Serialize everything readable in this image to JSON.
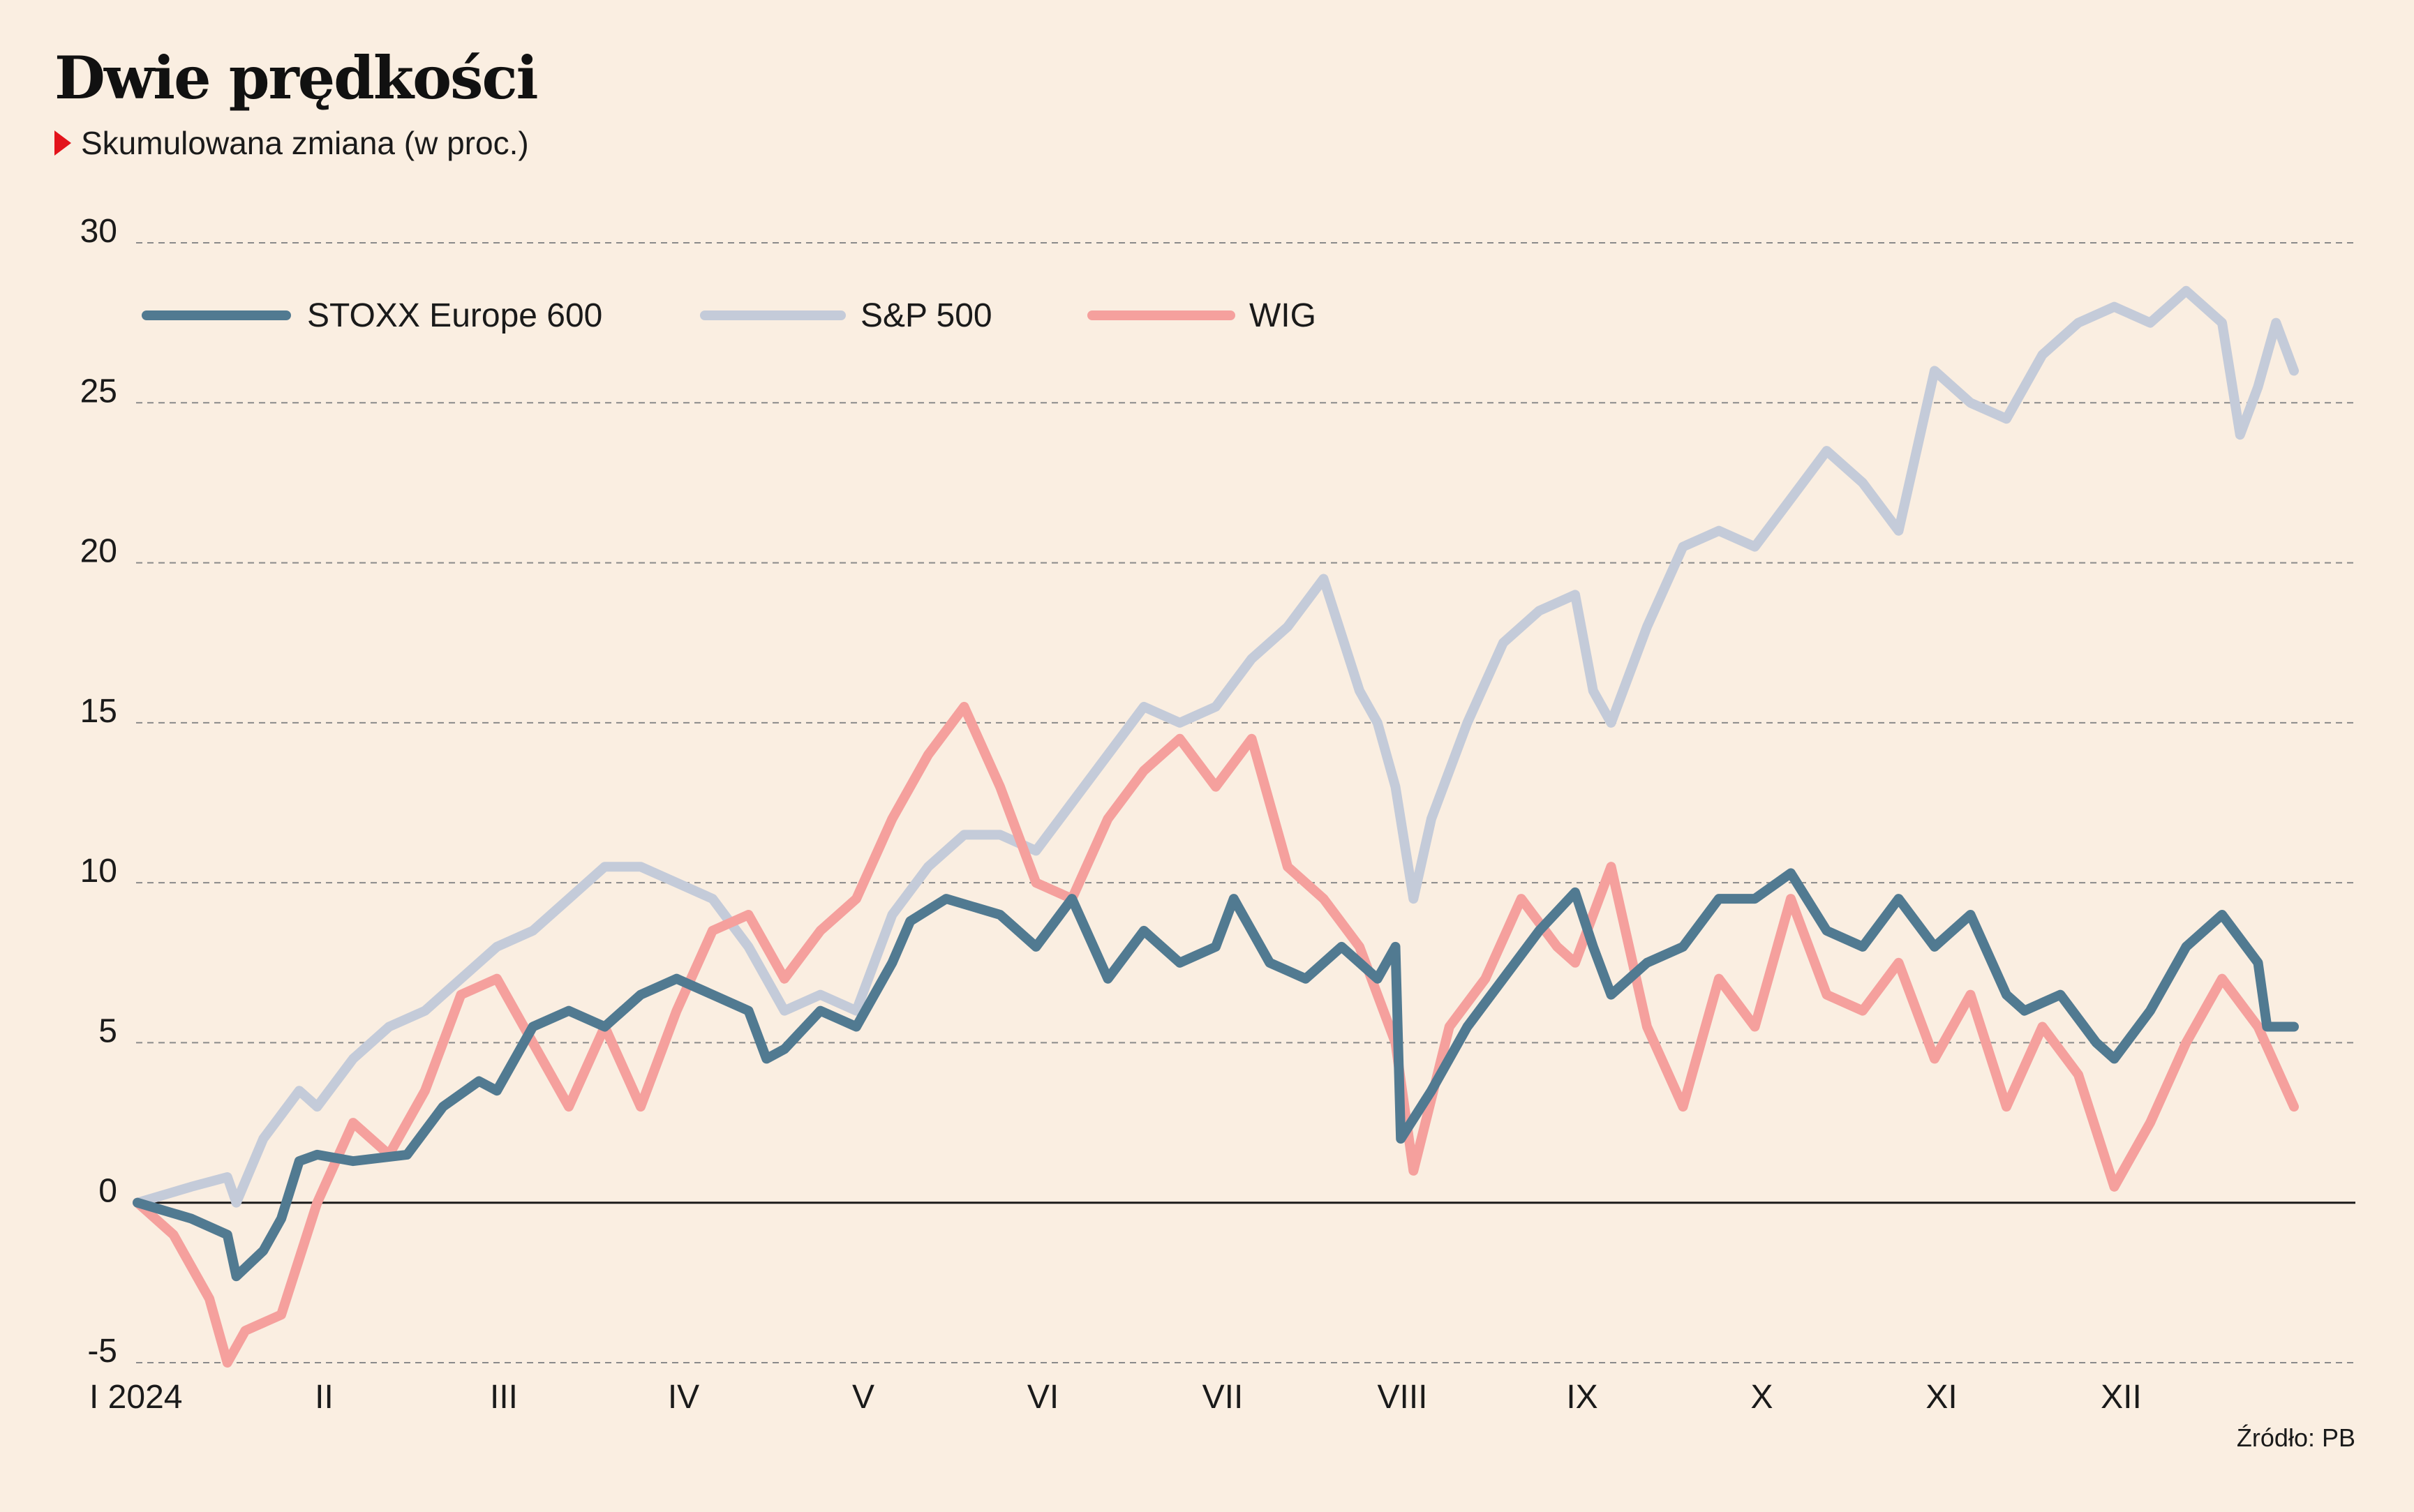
{
  "title": "Dwie prędkości",
  "subtitle": "Skumulowana zmiana (w proc.)",
  "source": "Źródło: PB",
  "colors": {
    "background": "#faeee1",
    "stoxx": "#517a91",
    "sp500": "#c4cbd9",
    "wig": "#f5a09d",
    "grid": "#8a8a8a",
    "zero_line": "#1a1a1a",
    "marker": "#e3131b"
  },
  "chart_data": {
    "type": "line",
    "title": "Dwie prędkości",
    "subtitle": "Skumulowana zmiana (w proc.)",
    "ylim": [
      -5,
      30
    ],
    "yticks": [
      30,
      25,
      20,
      15,
      10,
      5,
      0,
      -5
    ],
    "ytick_labels": [
      "30",
      "25",
      "20",
      "15",
      "10",
      "5",
      "0",
      "-5"
    ],
    "xlim": [
      0,
      12
    ],
    "xtick_positions": [
      0,
      1,
      2,
      3,
      4,
      5,
      6,
      7,
      8,
      9,
      10,
      11
    ],
    "xtick_labels": [
      "I 2024",
      "II",
      "III",
      "IV",
      "V",
      "VI",
      "VII",
      "VIII",
      "IX",
      "X",
      "XI",
      "XII"
    ],
    "grid": true,
    "legend_position": "top-left",
    "series": [
      {
        "name": "STOXX Europe 600",
        "color": "#517a91",
        "x": [
          0,
          0.3,
          0.5,
          0.55,
          0.7,
          0.8,
          0.9,
          1.0,
          1.2,
          1.5,
          1.7,
          1.9,
          2.0,
          2.2,
          2.4,
          2.6,
          2.8,
          3.0,
          3.2,
          3.4,
          3.5,
          3.6,
          3.8,
          4.0,
          4.2,
          4.3,
          4.5,
          4.8,
          5.0,
          5.2,
          5.4,
          5.6,
          5.8,
          6.0,
          6.1,
          6.3,
          6.5,
          6.7,
          6.9,
          7.0,
          7.03,
          7.2,
          7.4,
          7.6,
          7.8,
          8.0,
          8.1,
          8.2,
          8.4,
          8.6,
          8.8,
          9.0,
          9.2,
          9.4,
          9.6,
          9.8,
          10.0,
          10.2,
          10.4,
          10.5,
          10.7,
          10.9,
          11.0,
          11.2,
          11.4,
          11.6,
          11.8,
          11.85,
          12.0
        ],
        "values": [
          0,
          -0.5,
          -1.0,
          -2.3,
          -1.5,
          -0.5,
          1.3,
          1.5,
          1.3,
          1.5,
          3.0,
          3.8,
          3.5,
          5.5,
          6.0,
          5.5,
          6.5,
          7.0,
          6.5,
          6.0,
          4.5,
          4.8,
          6.0,
          5.5,
          7.5,
          8.8,
          9.5,
          9.0,
          8.0,
          9.5,
          7.0,
          8.5,
          7.5,
          8.0,
          9.5,
          7.5,
          7.0,
          8.0,
          7.0,
          8.0,
          2.0,
          3.5,
          5.5,
          7.0,
          8.5,
          9.7,
          8.0,
          6.5,
          7.5,
          8.0,
          9.5,
          9.5,
          10.3,
          8.5,
          8.0,
          9.5,
          8.0,
          9.0,
          6.5,
          6.0,
          6.5,
          5.0,
          4.5,
          6.0,
          8.0,
          9.0,
          7.5,
          5.5,
          5.5
        ]
      },
      {
        "name": "S&P 500",
        "color": "#c4cbd9",
        "x": [
          0,
          0.3,
          0.5,
          0.55,
          0.7,
          0.9,
          1.0,
          1.2,
          1.4,
          1.6,
          1.8,
          2.0,
          2.2,
          2.4,
          2.6,
          2.8,
          3.0,
          3.2,
          3.4,
          3.6,
          3.8,
          4.0,
          4.2,
          4.4,
          4.6,
          4.8,
          5.0,
          5.2,
          5.4,
          5.6,
          5.8,
          6.0,
          6.2,
          6.4,
          6.6,
          6.8,
          6.9,
          7.0,
          7.1,
          7.2,
          7.4,
          7.6,
          7.8,
          8.0,
          8.1,
          8.2,
          8.4,
          8.6,
          8.8,
          9.0,
          9.2,
          9.4,
          9.6,
          9.8,
          10.0,
          10.2,
          10.4,
          10.6,
          10.8,
          11.0,
          11.2,
          11.4,
          11.6,
          11.7,
          11.8,
          11.9,
          12.0
        ],
        "values": [
          0,
          0.5,
          0.8,
          0,
          2.0,
          3.5,
          3.0,
          4.5,
          5.5,
          6.0,
          7.0,
          8.0,
          8.5,
          9.5,
          10.5,
          10.5,
          10.0,
          9.5,
          8.0,
          6.0,
          6.5,
          6.0,
          9.0,
          10.5,
          11.5,
          11.5,
          11.0,
          12.5,
          14.0,
          15.5,
          15.0,
          15.5,
          17.0,
          18.0,
          19.5,
          16.0,
          15.0,
          13.0,
          9.5,
          12.0,
          15.0,
          17.5,
          18.5,
          19.0,
          16.0,
          15.0,
          18.0,
          20.5,
          21.0,
          20.5,
          22.0,
          23.5,
          22.5,
          21.0,
          26.0,
          25.0,
          24.5,
          26.5,
          27.5,
          28.0,
          27.5,
          28.5,
          27.5,
          24.0,
          25.5,
          27.5,
          26.0
        ]
      },
      {
        "name": "WIG",
        "color": "#f5a09d",
        "x": [
          0,
          0.2,
          0.4,
          0.5,
          0.6,
          0.8,
          1.0,
          1.2,
          1.4,
          1.6,
          1.8,
          2.0,
          2.2,
          2.4,
          2.6,
          2.8,
          3.0,
          3.2,
          3.4,
          3.6,
          3.8,
          4.0,
          4.2,
          4.4,
          4.6,
          4.8,
          4.9,
          5.0,
          5.2,
          5.4,
          5.6,
          5.8,
          6.0,
          6.2,
          6.4,
          6.6,
          6.8,
          7.0,
          7.1,
          7.3,
          7.5,
          7.7,
          7.9,
          8.0,
          8.2,
          8.4,
          8.6,
          8.8,
          9.0,
          9.2,
          9.4,
          9.6,
          9.8,
          10.0,
          10.2,
          10.4,
          10.6,
          10.8,
          11.0,
          11.2,
          11.4,
          11.6,
          11.8,
          12.0
        ],
        "values": [
          0,
          -1.0,
          -3.0,
          -5.0,
          -4.0,
          -3.5,
          0,
          2.5,
          1.5,
          3.5,
          6.5,
          7.0,
          5.0,
          3.0,
          5.5,
          3.0,
          6.0,
          8.5,
          9.0,
          7.0,
          8.5,
          9.5,
          12.0,
          14.0,
          15.5,
          13.0,
          11.5,
          10.0,
          9.5,
          12.0,
          13.5,
          14.5,
          13.0,
          14.5,
          10.5,
          9.5,
          8.0,
          5.0,
          1.0,
          5.5,
          7.0,
          9.5,
          8.0,
          7.5,
          10.5,
          5.5,
          3.0,
          7.0,
          5.5,
          9.5,
          6.5,
          6.0,
          7.5,
          4.5,
          6.5,
          3.0,
          5.5,
          4.0,
          0.5,
          2.5,
          5.0,
          7.0,
          5.5,
          3.0
        ]
      }
    ]
  }
}
